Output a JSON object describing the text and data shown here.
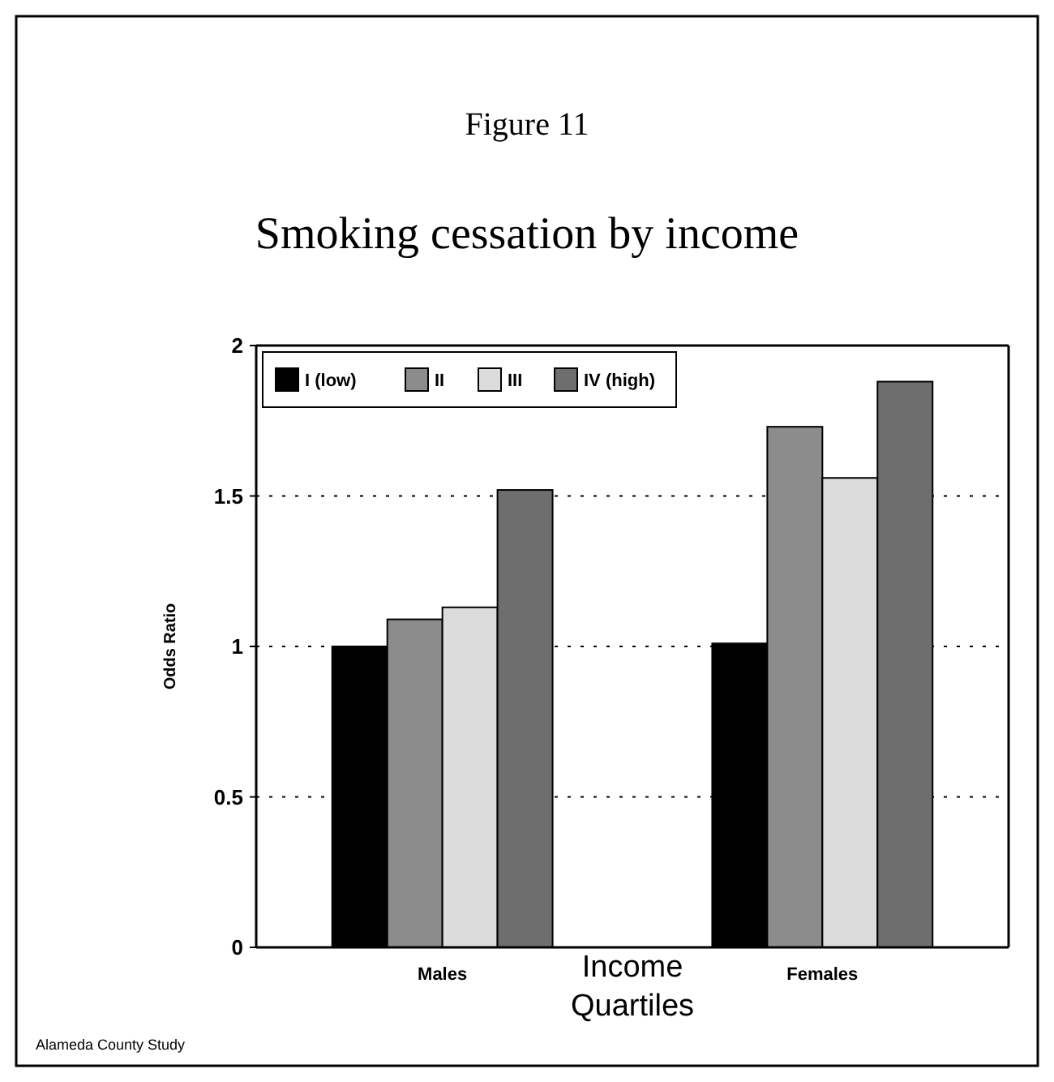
{
  "chart_data": {
    "type": "bar",
    "title": "Figure 11",
    "subtitle": "Smoking cessation by income",
    "xlabel": "Income Quartiles",
    "ylabel": "Odds Ratio",
    "annotations": [
      "Alameda County Study"
    ],
    "categories": [
      "Males",
      "Females"
    ],
    "series": [
      {
        "name": "I (low)",
        "color": "#000000",
        "values": [
          1.0,
          1.01
        ]
      },
      {
        "name": "II",
        "color": "#8c8c8c",
        "values": [
          1.09,
          1.73
        ]
      },
      {
        "name": "III",
        "color": "#dcdcdc",
        "values": [
          1.13,
          1.56
        ]
      },
      {
        "name": "IV (high)",
        "color": "#6e6e6e",
        "values": [
          1.52,
          1.88
        ]
      }
    ],
    "ylim": [
      0,
      2
    ],
    "yticks": [
      0,
      0.5,
      1,
      1.5,
      2
    ],
    "grid": "y",
    "legend": "top left"
  }
}
